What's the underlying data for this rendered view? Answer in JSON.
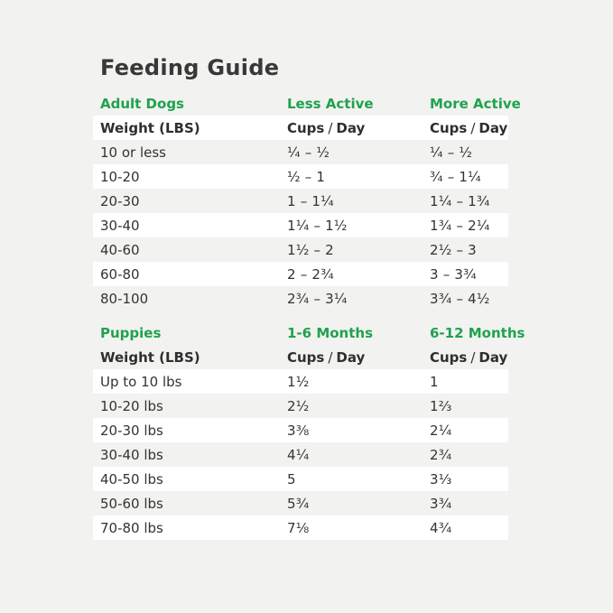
{
  "page_title": "Feeding Guide",
  "colors": {
    "accent_green": "#1fa24e",
    "text_dark": "#333333",
    "page_bg": "#f2f2f0",
    "row_highlight": "#ffffff"
  },
  "adult_section": {
    "heading": "Adult Dogs",
    "col_less": "Less Active",
    "col_more": "More Active",
    "weight_header": "Weight (LBS)",
    "cups_label": "Cups",
    "slash": "/",
    "day_label": "Day"
  },
  "puppies_section": {
    "heading": "Puppies",
    "col_1_6": "1-6 Months",
    "col_6_12": "6-12 Months",
    "weight_header": "Weight (LBS)",
    "cups_label": "Cups",
    "slash": "/",
    "day_label": "Day"
  },
  "chart_data": [
    {
      "type": "table",
      "title": "Adult Dogs",
      "columns": [
        "Weight (LBS)",
        "Less Active – Cups / Day",
        "More Active – Cups / Day"
      ],
      "rows": [
        [
          "10 or less",
          "¼ – ½",
          "¼ – ½"
        ],
        [
          "10-20",
          "½ – 1",
          "¾ – 1¼"
        ],
        [
          "20-30",
          "1 – 1¼",
          "1¼ – 1¾"
        ],
        [
          "30-40",
          "1¼ – 1½",
          "1¾ – 2¼"
        ],
        [
          "40-60",
          "1½ – 2",
          "2½ – 3"
        ],
        [
          "60-80",
          "2 – 2¾",
          "3 – 3¾"
        ],
        [
          "80-100",
          "2¾ – 3¼",
          "3¾ – 4½"
        ]
      ]
    },
    {
      "type": "table",
      "title": "Puppies",
      "columns": [
        "Weight (LBS)",
        "1-6 Months – Cups / Day",
        "6-12 Months – Cups / Day"
      ],
      "rows": [
        [
          "Up to 10 lbs",
          "1½",
          "1"
        ],
        [
          "10-20 lbs",
          "2½",
          "1⅔"
        ],
        [
          "20-30 lbs",
          "3⅜",
          "2¼"
        ],
        [
          "30-40 lbs",
          "4¼",
          "2¾"
        ],
        [
          "40-50 lbs",
          "5",
          "3⅓"
        ],
        [
          "50-60 lbs",
          "5¾",
          "3¾"
        ],
        [
          "70-80 lbs",
          "7⅛",
          "4¾"
        ]
      ]
    }
  ]
}
